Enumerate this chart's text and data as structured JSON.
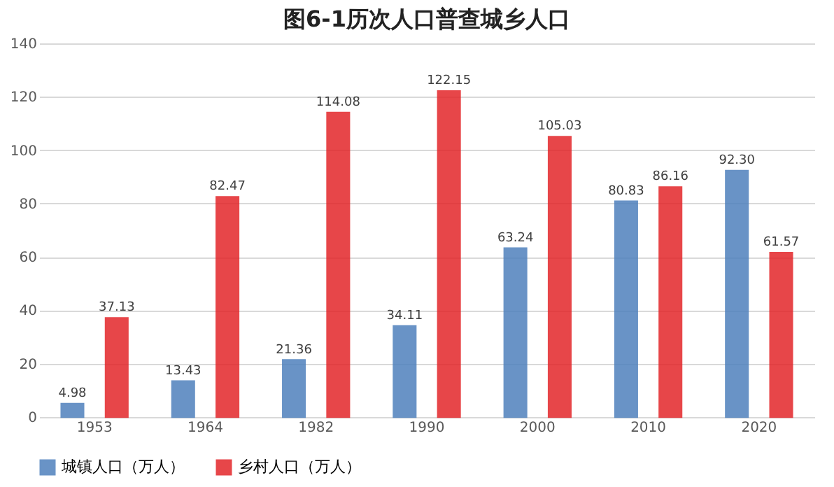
{
  "chart_data": {
    "type": "bar",
    "title": "图6-1历次人口普查城乡人口",
    "categories": [
      "1953",
      "1964",
      "1982",
      "1990",
      "2000",
      "2010",
      "2020"
    ],
    "series": [
      {
        "name": "城镇人口（万人）",
        "color": "#4f81bd",
        "values": [
          4.98,
          13.43,
          21.36,
          34.11,
          63.24,
          80.83,
          92.3
        ]
      },
      {
        "name": "乡村人口（万人）",
        "color": "#e3262a",
        "values": [
          37.13,
          82.47,
          114.08,
          122.15,
          105.03,
          86.16,
          61.57
        ]
      }
    ],
    "value_labels": [
      [
        "4.98",
        "13.43",
        "21.36",
        "34.11",
        "63.24",
        "80.83",
        "92.30"
      ],
      [
        "37.13",
        "82.47",
        "114.08",
        "122.15",
        "105.03",
        "86.16",
        "61.57"
      ]
    ],
    "ylim": [
      0,
      140
    ],
    "yticks": [
      0,
      20,
      40,
      60,
      80,
      100,
      120,
      140
    ],
    "grid": "y",
    "legend": "bottom"
  }
}
